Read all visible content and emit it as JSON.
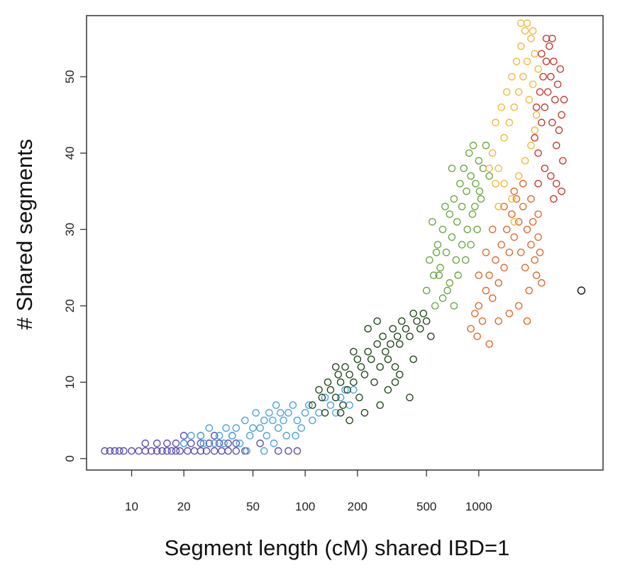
{
  "chart_data": {
    "type": "scatter",
    "xlabel": "Segment length (cM) shared IBD=1",
    "ylabel": "# Shared segments",
    "xscale": "log",
    "xlim": [
      5.5,
      5200
    ],
    "ylim": [
      -1.5,
      58
    ],
    "x_ticks": [
      10,
      20,
      50,
      100,
      200,
      500,
      1000
    ],
    "x_tick_labels": [
      "10",
      "20",
      "50",
      "100",
      "200",
      "500",
      "1000"
    ],
    "y_ticks": [
      0,
      10,
      20,
      30,
      40,
      50
    ],
    "y_tick_labels": [
      "0",
      "10",
      "20",
      "30",
      "40",
      "50"
    ],
    "grid": false,
    "legend": "none",
    "series": [
      {
        "color": "#5b4fb3",
        "values": [
          [
            7,
            1
          ],
          [
            7.5,
            1
          ],
          [
            8,
            1
          ],
          [
            8.5,
            1
          ],
          [
            9,
            1
          ],
          [
            10,
            1
          ],
          [
            11,
            1
          ],
          [
            12,
            1
          ],
          [
            13,
            1
          ],
          [
            14,
            1
          ],
          [
            15,
            1
          ],
          [
            16,
            1
          ],
          [
            17,
            1
          ],
          [
            18,
            1
          ],
          [
            19,
            1
          ],
          [
            21,
            1
          ],
          [
            23,
            1
          ],
          [
            25,
            1
          ],
          [
            27,
            1
          ],
          [
            30,
            1
          ],
          [
            33,
            1
          ],
          [
            36,
            1
          ],
          [
            40,
            1
          ],
          [
            45,
            1
          ],
          [
            12,
            2
          ],
          [
            14,
            2
          ],
          [
            16,
            2
          ],
          [
            18,
            2
          ],
          [
            20,
            2
          ],
          [
            22,
            2
          ],
          [
            25,
            2
          ],
          [
            28,
            2
          ],
          [
            32,
            2
          ],
          [
            36,
            2
          ],
          [
            40,
            2
          ],
          [
            20,
            3
          ],
          [
            25,
            3
          ],
          [
            30,
            3
          ],
          [
            38,
            3
          ],
          [
            70,
            1
          ],
          [
            80,
            1
          ],
          [
            90,
            1
          ],
          [
            55,
            2
          ]
        ]
      },
      {
        "color": "#4da2e0",
        "values": [
          [
            20,
            2
          ],
          [
            22,
            3
          ],
          [
            25,
            3
          ],
          [
            28,
            4
          ],
          [
            30,
            2
          ],
          [
            32,
            3
          ],
          [
            35,
            4
          ],
          [
            38,
            3
          ],
          [
            40,
            4
          ],
          [
            42,
            2
          ],
          [
            45,
            5
          ],
          [
            48,
            3
          ],
          [
            50,
            4
          ],
          [
            52,
            6
          ],
          [
            55,
            4
          ],
          [
            58,
            5
          ],
          [
            60,
            3
          ],
          [
            62,
            6
          ],
          [
            65,
            5
          ],
          [
            68,
            7
          ],
          [
            70,
            4
          ],
          [
            72,
            6
          ],
          [
            75,
            5
          ],
          [
            80,
            6
          ],
          [
            85,
            7
          ],
          [
            90,
            5
          ],
          [
            95,
            4
          ],
          [
            100,
            6
          ],
          [
            105,
            7
          ],
          [
            110,
            5
          ],
          [
            120,
            6
          ],
          [
            130,
            8
          ],
          [
            140,
            7
          ],
          [
            150,
            6
          ],
          [
            160,
            8
          ],
          [
            170,
            9
          ],
          [
            180,
            7
          ],
          [
            190,
            9
          ],
          [
            26,
            2
          ],
          [
            34,
            2
          ],
          [
            46,
            1
          ],
          [
            58,
            1
          ],
          [
            66,
            2
          ],
          [
            78,
            3
          ],
          [
            88,
            3
          ]
        ]
      },
      {
        "color": "#23461c",
        "values": [
          [
            110,
            7
          ],
          [
            120,
            9
          ],
          [
            125,
            8
          ],
          [
            130,
            6
          ],
          [
            135,
            10
          ],
          [
            140,
            9
          ],
          [
            150,
            8
          ],
          [
            155,
            11
          ],
          [
            160,
            10
          ],
          [
            165,
            7
          ],
          [
            170,
            12
          ],
          [
            175,
            9
          ],
          [
            180,
            11
          ],
          [
            190,
            10
          ],
          [
            200,
            13
          ],
          [
            205,
            8
          ],
          [
            210,
            12
          ],
          [
            220,
            11
          ],
          [
            230,
            14
          ],
          [
            240,
            13
          ],
          [
            250,
            10
          ],
          [
            260,
            15
          ],
          [
            270,
            12
          ],
          [
            280,
            16
          ],
          [
            290,
            14
          ],
          [
            300,
            13
          ],
          [
            310,
            15
          ],
          [
            320,
            17
          ],
          [
            330,
            12
          ],
          [
            340,
            16
          ],
          [
            350,
            15
          ],
          [
            360,
            18
          ],
          [
            380,
            17
          ],
          [
            400,
            16
          ],
          [
            420,
            19
          ],
          [
            440,
            18
          ],
          [
            460,
            17
          ],
          [
            480,
            19
          ],
          [
            500,
            18
          ],
          [
            230,
            17
          ],
          [
            260,
            18
          ],
          [
            190,
            14
          ],
          [
            150,
            12
          ],
          [
            300,
            9
          ],
          [
            350,
            11
          ],
          [
            400,
            8
          ],
          [
            220,
            6
          ],
          [
            180,
            5
          ],
          [
            160,
            6
          ],
          [
            270,
            7
          ],
          [
            330,
            10
          ],
          [
            420,
            13
          ],
          [
            530,
            16
          ]
        ]
      },
      {
        "color": "#6da544",
        "values": [
          [
            500,
            22
          ],
          [
            520,
            26
          ],
          [
            550,
            24
          ],
          [
            580,
            28
          ],
          [
            600,
            25
          ],
          [
            620,
            30
          ],
          [
            650,
            27
          ],
          [
            680,
            32
          ],
          [
            700,
            29
          ],
          [
            720,
            34
          ],
          [
            750,
            31
          ],
          [
            780,
            36
          ],
          [
            800,
            33
          ],
          [
            820,
            38
          ],
          [
            850,
            35
          ],
          [
            880,
            40
          ],
          [
            900,
            37
          ],
          [
            930,
            41
          ],
          [
            960,
            36
          ],
          [
            1000,
            39
          ],
          [
            1030,
            34
          ],
          [
            1060,
            38
          ],
          [
            1100,
            41
          ],
          [
            1150,
            37
          ],
          [
            560,
            20
          ],
          [
            620,
            21
          ],
          [
            680,
            23
          ],
          [
            740,
            26
          ],
          [
            800,
            28
          ],
          [
            860,
            30
          ],
          [
            920,
            32
          ],
          [
            980,
            30
          ],
          [
            640,
            33
          ],
          [
            700,
            38
          ],
          [
            760,
            24
          ],
          [
            660,
            22
          ],
          [
            720,
            20
          ],
          [
            590,
            24
          ],
          [
            840,
            26
          ],
          [
            900,
            28
          ],
          [
            950,
            33
          ],
          [
            1010,
            35
          ],
          [
            540,
            31
          ],
          [
            570,
            27
          ]
        ]
      },
      {
        "color": "#dc6b2b",
        "values": [
          [
            900,
            17
          ],
          [
            950,
            19
          ],
          [
            1000,
            20
          ],
          [
            1050,
            18
          ],
          [
            1100,
            22
          ],
          [
            1150,
            24
          ],
          [
            1200,
            21
          ],
          [
            1250,
            26
          ],
          [
            1300,
            23
          ],
          [
            1350,
            28
          ],
          [
            1400,
            25
          ],
          [
            1450,
            30
          ],
          [
            1500,
            27
          ],
          [
            1550,
            32
          ],
          [
            1600,
            29
          ],
          [
            1650,
            34
          ],
          [
            1700,
            31
          ],
          [
            1750,
            27
          ],
          [
            1800,
            33
          ],
          [
            1850,
            25
          ],
          [
            1900,
            30
          ],
          [
            1950,
            22
          ],
          [
            2000,
            28
          ],
          [
            2050,
            31
          ],
          [
            2100,
            26
          ],
          [
            2150,
            24
          ],
          [
            2200,
            29
          ],
          [
            2250,
            27
          ],
          [
            2300,
            23
          ],
          [
            1300,
            18
          ],
          [
            1500,
            19
          ],
          [
            1700,
            20
          ],
          [
            1900,
            18
          ],
          [
            1200,
            30
          ],
          [
            1400,
            33
          ],
          [
            1600,
            35
          ],
          [
            1800,
            36
          ],
          [
            2000,
            34
          ],
          [
            2200,
            32
          ],
          [
            1100,
            27
          ],
          [
            1000,
            24
          ],
          [
            980,
            16
          ],
          [
            1150,
            15
          ]
        ]
      },
      {
        "color": "#f1b93a",
        "values": [
          [
            1200,
            40
          ],
          [
            1250,
            44
          ],
          [
            1300,
            38
          ],
          [
            1350,
            46
          ],
          [
            1400,
            42
          ],
          [
            1450,
            48
          ],
          [
            1500,
            44
          ],
          [
            1550,
            50
          ],
          [
            1600,
            46
          ],
          [
            1650,
            52
          ],
          [
            1700,
            48
          ],
          [
            1750,
            54
          ],
          [
            1800,
            50
          ],
          [
            1850,
            56
          ],
          [
            1900,
            52
          ],
          [
            1950,
            47
          ],
          [
            2000,
            55
          ],
          [
            2050,
            49
          ],
          [
            2100,
            53
          ],
          [
            2150,
            45
          ],
          [
            2200,
            51
          ],
          [
            1400,
            36
          ],
          [
            1550,
            34
          ],
          [
            1700,
            37
          ],
          [
            1850,
            39
          ],
          [
            2000,
            41
          ],
          [
            2100,
            43
          ],
          [
            1300,
            33
          ],
          [
            1150,
            38
          ],
          [
            1250,
            36
          ],
          [
            1600,
            31
          ],
          [
            1750,
            57
          ],
          [
            1900,
            57
          ],
          [
            2050,
            56
          ]
        ]
      },
      {
        "color": "#c53a2e",
        "values": [
          [
            2100,
            42
          ],
          [
            2150,
            46
          ],
          [
            2200,
            40
          ],
          [
            2250,
            48
          ],
          [
            2300,
            44
          ],
          [
            2350,
            50
          ],
          [
            2400,
            46
          ],
          [
            2450,
            52
          ],
          [
            2500,
            48
          ],
          [
            2550,
            54
          ],
          [
            2600,
            50
          ],
          [
            2650,
            44
          ],
          [
            2700,
            52
          ],
          [
            2750,
            47
          ],
          [
            2800,
            41
          ],
          [
            2850,
            49
          ],
          [
            2900,
            43
          ],
          [
            2950,
            51
          ],
          [
            3000,
            45
          ],
          [
            3050,
            39
          ],
          [
            3100,
            47
          ],
          [
            2400,
            38
          ],
          [
            2600,
            37
          ],
          [
            2800,
            36
          ],
          [
            2450,
            55
          ],
          [
            2650,
            55
          ],
          [
            2300,
            53
          ],
          [
            3000,
            35
          ],
          [
            2200,
            36
          ],
          [
            2700,
            34
          ]
        ]
      },
      {
        "color": "#111111",
        "values": [
          [
            3900,
            22
          ]
        ]
      }
    ]
  }
}
